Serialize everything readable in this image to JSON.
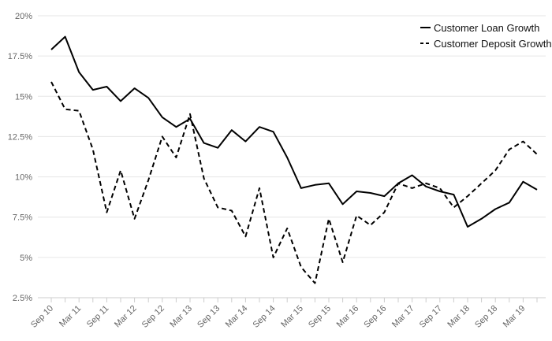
{
  "chart_data": {
    "type": "line",
    "title": "",
    "xlabel": "",
    "ylabel": "",
    "ylim": [
      2.5,
      20
    ],
    "grid": true,
    "legend_position": "top-right",
    "y_ticks": [
      "2.5%",
      "5%",
      "7.5%",
      "10%",
      "12.5%",
      "15%",
      "17.5%",
      "20%"
    ],
    "y_tick_values": [
      2.5,
      5,
      7.5,
      10,
      12.5,
      15,
      17.5,
      20
    ],
    "x_tick_labels": [
      "Sep 10",
      "Mar 11",
      "Sep 11",
      "Mar 12",
      "Sep 12",
      "Mar 13",
      "Sep 13",
      "Mar 14",
      "Sep 14",
      "Mar 15",
      "Sep 15",
      "Mar 16",
      "Sep 16",
      "Mar 17",
      "Sep 17",
      "Mar 18",
      "Sep 18",
      "Mar 19"
    ],
    "x": [
      "Sep 10",
      "Dec 10",
      "Mar 11",
      "Jun 11",
      "Sep 11",
      "Dec 11",
      "Mar 12",
      "Jun 12",
      "Sep 12",
      "Dec 12",
      "Mar 13",
      "Jun 13",
      "Sep 13",
      "Dec 13",
      "Mar 14",
      "Jun 14",
      "Sep 14",
      "Dec 14",
      "Mar 15",
      "Jun 15",
      "Sep 15",
      "Dec 15",
      "Mar 16",
      "Jun 16",
      "Sep 16",
      "Dec 16",
      "Mar 17",
      "Jun 17",
      "Sep 17",
      "Dec 17",
      "Mar 18",
      "Jun 18",
      "Sep 18",
      "Dec 18",
      "Mar 19",
      "Jun 19"
    ],
    "series": [
      {
        "name": "Customer Loan Growth",
        "style": "solid",
        "color": "#000000",
        "values": [
          17.9,
          18.7,
          16.5,
          15.4,
          15.6,
          14.7,
          15.5,
          14.9,
          13.7,
          13.1,
          13.6,
          12.1,
          11.8,
          12.9,
          12.2,
          13.1,
          12.8,
          11.2,
          9.3,
          9.5,
          9.6,
          8.3,
          9.1,
          9.0,
          8.8,
          9.6,
          10.1,
          9.4,
          9.1,
          8.9,
          6.9,
          7.4,
          8.0,
          8.4,
          9.7,
          9.2
        ]
      },
      {
        "name": "Customer Deposit Growth",
        "style": "dashed",
        "color": "#000000",
        "values": [
          15.9,
          14.2,
          14.1,
          11.7,
          7.8,
          10.4,
          7.4,
          9.8,
          12.5,
          11.2,
          13.9,
          9.9,
          8.1,
          7.9,
          6.3,
          9.3,
          5.0,
          6.8,
          4.4,
          3.4,
          7.4,
          4.7,
          7.6,
          7.0,
          7.8,
          9.6,
          9.3,
          9.6,
          9.3,
          8.1,
          8.8,
          9.6,
          10.4,
          11.7,
          12.2,
          11.4
        ]
      }
    ]
  }
}
